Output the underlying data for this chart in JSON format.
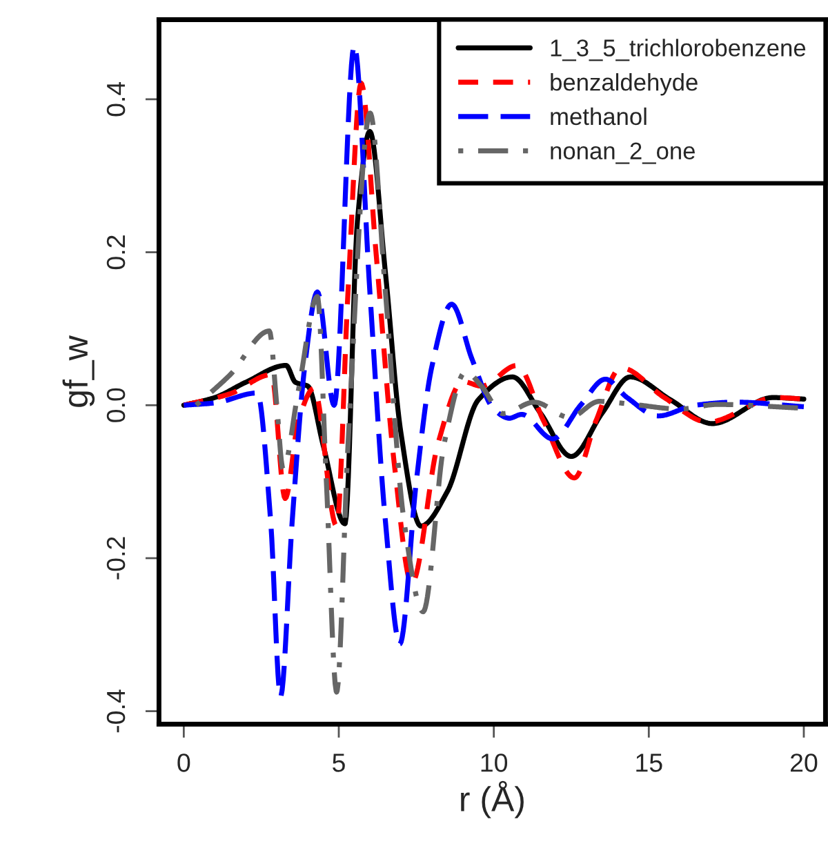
{
  "chart_data": {
    "type": "line",
    "xlabel": "r (Å)",
    "ylabel": "gf_w",
    "xlim": [
      -0.8,
      20.7
    ],
    "ylim": [
      -0.417,
      0.504
    ],
    "xticks": [
      0,
      5,
      10,
      15,
      20
    ],
    "yticks": [
      -0.4,
      -0.2,
      {
        "value": 0,
        "label": "0.0"
      },
      0.2,
      0.4
    ],
    "grid": false,
    "legend": "top right",
    "series": [
      {
        "name": "1_3_5_trichlorobenzene",
        "color": "#000000",
        "line_style": "solid",
        "x": [
          0,
          1,
          2,
          3.3,
          3.6,
          4.0,
          4.5,
          5.2,
          5.6,
          6.0,
          6.5,
          7.0,
          7.65,
          8.5,
          9.5,
          10.6,
          11.5,
          12.5,
          13.5,
          14.4,
          15.7,
          17.05,
          19,
          20
        ],
        "values": [
          0,
          0.01,
          0.03,
          0.052,
          0.03,
          0.025,
          -0.053,
          -0.155,
          0.24,
          0.358,
          0.175,
          -0.035,
          -0.158,
          -0.113,
          0.007,
          0.037,
          -0.01,
          -0.067,
          -0.01,
          0.037,
          0.007,
          -0.024,
          0.01,
          0.008
        ]
      },
      {
        "name": "benzaldehyde",
        "color": "#ff0000",
        "line_style": "dashed",
        "x": [
          0,
          1.5,
          2.83,
          3.27,
          3.7,
          4.2,
          4.93,
          5.3,
          5.72,
          6.2,
          6.8,
          7.35,
          8.2,
          9.0,
          9.6,
          10.75,
          11.6,
          12.6,
          13.3,
          14.1,
          15.5,
          16.9,
          19.1,
          20
        ],
        "values": [
          0,
          0.015,
          0.04,
          -0.122,
          -0.02,
          0.022,
          -0.158,
          0.15,
          0.421,
          0.2,
          -0.08,
          -0.233,
          -0.05,
          0.031,
          0.025,
          0.052,
          -0.02,
          -0.095,
          -0.02,
          0.049,
          0.01,
          -0.022,
          0.01,
          0.008
        ]
      },
      {
        "name": "methanol",
        "color": "#0000ff",
        "line_style": "longdash",
        "x": [
          0,
          1,
          2.37,
          2.8,
          3.12,
          3.5,
          3.9,
          4.31,
          4.85,
          5.5,
          6.0,
          6.5,
          6.97,
          7.5,
          8.0,
          8.64,
          9.3,
          10.0,
          10.5,
          10.9,
          11.9,
          12.8,
          13.6,
          14.3,
          15.3,
          16.5,
          17.8,
          20
        ],
        "values": [
          0,
          0.003,
          0.016,
          -0.15,
          -0.381,
          -0.15,
          0.05,
          0.148,
          0.0,
          0.47,
          0.15,
          -0.15,
          -0.312,
          -0.1,
          0.05,
          0.132,
          0.06,
          -0.005,
          -0.017,
          -0.012,
          -0.044,
          0.0,
          0.034,
          0.01,
          -0.014,
          0.0,
          0.004,
          -0.002
        ]
      },
      {
        "name": "nonan_2_one",
        "color": "#666666",
        "line_style": "dashdot",
        "x": [
          0.4,
          1.5,
          2.76,
          3.0,
          3.2,
          3.7,
          4.31,
          4.6,
          4.93,
          5.3,
          6.01,
          6.5,
          7.1,
          7.72,
          8.4,
          9.1,
          9.6,
          10.3,
          11.3,
          12.45,
          13.4,
          14.5,
          16,
          17.2,
          20
        ],
        "values": [
          0,
          0.04,
          0.097,
          0.0,
          -0.083,
          0.02,
          0.142,
          -0.1,
          -0.375,
          -0.05,
          0.382,
          0.15,
          -0.15,
          -0.27,
          -0.05,
          0.044,
          0.025,
          -0.011,
          0.004,
          -0.016,
          0.005,
          0.001,
          -0.005,
          0.001,
          -0.004
        ]
      }
    ]
  }
}
